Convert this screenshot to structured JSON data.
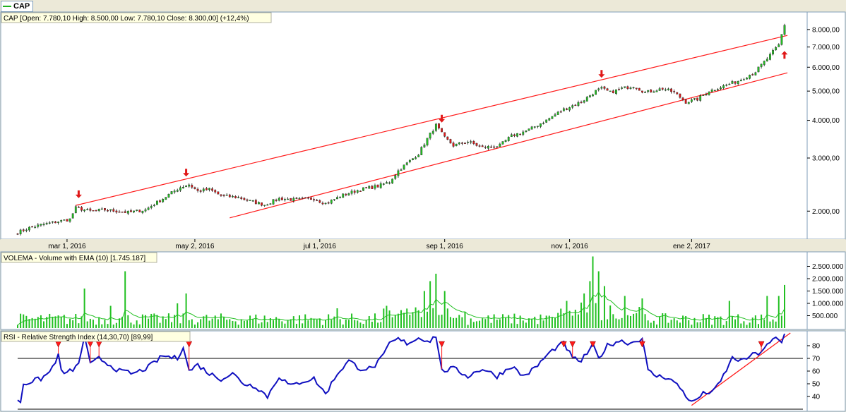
{
  "window": {
    "tab_label": "CAP",
    "colors": {
      "background": "#ece9d8",
      "panel": "#ffffff",
      "border": "#7f9db9",
      "up": "#22c022",
      "down": "#e01818",
      "rsi": "#1010c0",
      "channel": "#ff1a1a",
      "label_bg": "#ffffe1"
    }
  },
  "chart_data": [
    {
      "type": "candlestick",
      "title": "CAP [Open: 7.780,10  High: 8.500,00  Low: 7.780,10  Close: 8.300,00] (+12,4%)",
      "scale": "log",
      "ylim": [
        1650,
        9000
      ],
      "ytick_values": [
        2000,
        3000,
        4000,
        5000,
        6000,
        7000,
        8000
      ],
      "ytick_labels": [
        "2.000,00",
        "3.000,00",
        "4.000,00",
        "5.000,00",
        "6.000,00",
        "7.000,00",
        "8.000,00"
      ],
      "xtick_labels": [
        "mar 1, 2016",
        "may 2, 2016",
        "jul 1, 2016",
        "sep 1, 2016",
        "nov 1, 2016",
        "ene 2, 2017"
      ],
      "xtick_bar_index": [
        17,
        61,
        104,
        147,
        190,
        232
      ],
      "n_bars": 265,
      "start_close": 1700,
      "key_closes": [
        [
          0,
          1700
        ],
        [
          4,
          1760
        ],
        [
          8,
          1800
        ],
        [
          13,
          1840
        ],
        [
          18,
          1880
        ],
        [
          20,
          2050
        ],
        [
          25,
          2000
        ],
        [
          30,
          2020
        ],
        [
          38,
          1980
        ],
        [
          44,
          2020
        ],
        [
          50,
          2200
        ],
        [
          56,
          2400
        ],
        [
          59,
          2450
        ],
        [
          62,
          2330
        ],
        [
          66,
          2360
        ],
        [
          70,
          2250
        ],
        [
          76,
          2220
        ],
        [
          80,
          2160
        ],
        [
          85,
          2100
        ],
        [
          90,
          2200
        ],
        [
          96,
          2180
        ],
        [
          102,
          2200
        ],
        [
          106,
          2120
        ],
        [
          112,
          2260
        ],
        [
          118,
          2360
        ],
        [
          124,
          2420
        ],
        [
          128,
          2500
        ],
        [
          131,
          2720
        ],
        [
          134,
          2880
        ],
        [
          138,
          3100
        ],
        [
          142,
          3600
        ],
        [
          144,
          3850
        ],
        [
          147,
          3500
        ],
        [
          150,
          3300
        ],
        [
          155,
          3400
        ],
        [
          160,
          3250
        ],
        [
          166,
          3300
        ],
        [
          170,
          3550
        ],
        [
          176,
          3720
        ],
        [
          182,
          4000
        ],
        [
          188,
          4350
        ],
        [
          194,
          4600
        ],
        [
          199,
          5000
        ],
        [
          201,
          5100
        ],
        [
          204,
          4950
        ],
        [
          208,
          5100
        ],
        [
          212,
          5200
        ],
        [
          216,
          4950
        ],
        [
          222,
          5100
        ],
        [
          226,
          4950
        ],
        [
          230,
          4600
        ],
        [
          234,
          4700
        ],
        [
          238,
          5000
        ],
        [
          243,
          5200
        ],
        [
          248,
          5400
        ],
        [
          254,
          5800
        ],
        [
          258,
          6400
        ],
        [
          262,
          7100
        ],
        [
          264,
          8300
        ]
      ],
      "markers_down_bar_index": [
        21,
        58,
        146,
        201
      ],
      "markers_up_bar_index": [
        263
      ],
      "channel": {
        "upper": [
          [
            20,
            2090
          ],
          [
            265,
            7650
          ]
        ],
        "lower": [
          [
            73,
            1900
          ],
          [
            265,
            5750
          ]
        ]
      }
    },
    {
      "type": "bar",
      "title": "VOLEMA - Volume with EMA (10) [1.745.187]",
      "ylim": [
        0,
        3000000
      ],
      "ytick_values": [
        500000,
        1000000,
        1500000,
        2000000,
        2500000
      ],
      "ytick_labels": [
        "500.000",
        "1.000.000",
        "1.500.000",
        "2.000.000",
        "2.500.000"
      ],
      "series": [
        {
          "name": "Volume",
          "base": 300000
        },
        {
          "name": "EMA (10)"
        }
      ],
      "spikes": [
        [
          23,
          1600000
        ],
        [
          32,
          900000
        ],
        [
          37,
          2300000
        ],
        [
          55,
          1000000
        ],
        [
          58,
          1400000
        ],
        [
          110,
          800000
        ],
        [
          140,
          1500000
        ],
        [
          142,
          1900000
        ],
        [
          144,
          2200000
        ],
        [
          147,
          1500000
        ],
        [
          189,
          1100000
        ],
        [
          195,
          1400000
        ],
        [
          197,
          1900000
        ],
        [
          198,
          2900000
        ],
        [
          200,
          2300000
        ],
        [
          202,
          1700000
        ],
        [
          209,
          1300000
        ],
        [
          215,
          1200000
        ],
        [
          245,
          1100000
        ],
        [
          258,
          1300000
        ],
        [
          262,
          1300000
        ],
        [
          264,
          1745187
        ]
      ]
    },
    {
      "type": "line",
      "title": "RSI - Relative Strength Index (14,30,70) [89,99]",
      "ylim": [
        30,
        90
      ],
      "ytick_values": [
        40,
        50,
        60,
        70,
        80
      ],
      "ytick_labels": [
        "40",
        "50",
        "60",
        "70",
        "80"
      ],
      "reference_lines": [
        30,
        70
      ],
      "key_values": [
        [
          0,
          38
        ],
        [
          1,
          36
        ],
        [
          2,
          50
        ],
        [
          5,
          52
        ],
        [
          8,
          54
        ],
        [
          11,
          59
        ],
        [
          13,
          68
        ],
        [
          14,
          72
        ],
        [
          15,
          60
        ],
        [
          17,
          58
        ],
        [
          21,
          65
        ],
        [
          23,
          88
        ],
        [
          25,
          65
        ],
        [
          28,
          70
        ],
        [
          31,
          66
        ],
        [
          35,
          60
        ],
        [
          40,
          58
        ],
        [
          45,
          63
        ],
        [
          50,
          72
        ],
        [
          55,
          70
        ],
        [
          57,
          80
        ],
        [
          59,
          60
        ],
        [
          62,
          65
        ],
        [
          66,
          58
        ],
        [
          70,
          54
        ],
        [
          74,
          58
        ],
        [
          78,
          50
        ],
        [
          82,
          48
        ],
        [
          86,
          40
        ],
        [
          90,
          56
        ],
        [
          94,
          48
        ],
        [
          98,
          52
        ],
        [
          102,
          54
        ],
        [
          106,
          42
        ],
        [
          110,
          58
        ],
        [
          114,
          68
        ],
        [
          118,
          62
        ],
        [
          122,
          62
        ],
        [
          126,
          72
        ],
        [
          128,
          82
        ],
        [
          131,
          85
        ],
        [
          134,
          82
        ],
        [
          138,
          86
        ],
        [
          142,
          84
        ],
        [
          144,
          88
        ],
        [
          146,
          60
        ],
        [
          150,
          62
        ],
        [
          155,
          56
        ],
        [
          160,
          62
        ],
        [
          165,
          56
        ],
        [
          170,
          64
        ],
        [
          174,
          56
        ],
        [
          178,
          62
        ],
        [
          182,
          72
        ],
        [
          185,
          78
        ],
        [
          188,
          82
        ],
        [
          191,
          70
        ],
        [
          194,
          68
        ],
        [
          198,
          80
        ],
        [
          200,
          70
        ],
        [
          203,
          80
        ],
        [
          207,
          84
        ],
        [
          211,
          82
        ],
        [
          215,
          86
        ],
        [
          217,
          60
        ],
        [
          220,
          56
        ],
        [
          224,
          55
        ],
        [
          228,
          47
        ],
        [
          232,
          35
        ],
        [
          236,
          42
        ],
        [
          240,
          45
        ],
        [
          242,
          52
        ],
        [
          246,
          70
        ],
        [
          250,
          68
        ],
        [
          252,
          72
        ],
        [
          255,
          74
        ],
        [
          258,
          80
        ],
        [
          261,
          86
        ],
        [
          263,
          82
        ],
        [
          264,
          89.99
        ]
      ],
      "markers_down_bar_index": [
        14,
        25,
        28,
        59,
        146,
        188,
        191,
        198,
        215,
        256
      ],
      "trendline": [
        [
          232,
          33
        ],
        [
          266,
          90
        ]
      ]
    }
  ]
}
